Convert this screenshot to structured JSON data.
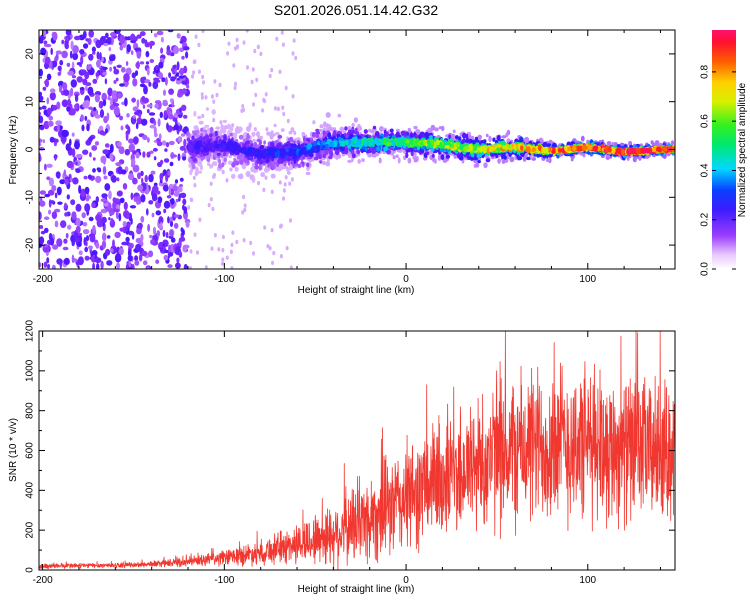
{
  "title": "S201.2026.051.14.42.G32",
  "chart_data": [
    {
      "type": "heatmap",
      "title": "S201.2026.051.14.42.G32",
      "xlabel": "Height of straight line (km)",
      "ylabel": "Frequency (Hz)",
      "xlim": [
        -202,
        148
      ],
      "ylim": [
        -25,
        25
      ],
      "xticks": [
        -200,
        -100,
        0,
        100
      ],
      "yticks": [
        20,
        10,
        0,
        -10,
        -20
      ],
      "colorbar": {
        "label": "Normalized spectral amplitude",
        "range": [
          0.0,
          0.97
        ],
        "ticks": [
          0.0,
          0.2,
          0.4,
          0.6,
          0.8
        ],
        "colormap": "rainbow (violet-blue-cyan-green-yellow-red-magenta)"
      },
      "ridge": {
        "description": "Dominant spectral ridge near 0 Hz beginning near -120 km, amplitude rising with height",
        "x_km": [
          -120,
          -100,
          -80,
          -60,
          -40,
          -20,
          0,
          20,
          40,
          60,
          80,
          100,
          120,
          140,
          148
        ],
        "freq_hz": [
          0.5,
          0.8,
          -1.0,
          -0.5,
          1.5,
          1.5,
          1.5,
          1.0,
          0.0,
          0.5,
          -0.3,
          0.5,
          -0.5,
          0.0,
          0.0
        ],
        "amplitude": [
          0.2,
          0.22,
          0.25,
          0.28,
          0.35,
          0.45,
          0.5,
          0.6,
          0.65,
          0.72,
          0.78,
          0.85,
          0.9,
          0.93,
          0.95
        ],
        "spread_hz": [
          6,
          5,
          4.5,
          4.5,
          4,
          3.5,
          3,
          3,
          3,
          2.5,
          2,
          1.5,
          1.5,
          1.2,
          1.2
        ]
      },
      "noise_region": {
        "x_km": [
          -202,
          -120
        ],
        "freq_hz": [
          -25,
          25
        ],
        "amplitude": [
          0.05,
          0.2
        ]
      }
    },
    {
      "type": "line",
      "xlabel": "Height of straight line (km)",
      "ylabel": "SNR (10 * v/v)",
      "xlim": [
        -202,
        148
      ],
      "ylim": [
        0,
        1200
      ],
      "xticks": [
        -200,
        -100,
        0,
        100
      ],
      "yticks": [
        0,
        200,
        400,
        600,
        800,
        1000,
        1200
      ],
      "series": [
        {
          "name": "SNR",
          "color": "#f03830",
          "envelope_x_km": [
            -200,
            -150,
            -120,
            -100,
            -80,
            -60,
            -40,
            -20,
            0,
            20,
            40,
            60,
            80,
            100,
            120,
            140,
            148
          ],
          "envelope_mean": [
            20,
            25,
            40,
            60,
            90,
            130,
            180,
            260,
            360,
            460,
            540,
            600,
            640,
            630,
            610,
            600,
            620
          ],
          "envelope_amp": [
            15,
            15,
            25,
            45,
            70,
            110,
            180,
            250,
            300,
            340,
            380,
            420,
            450,
            430,
            400,
            380,
            380
          ],
          "peak_value": 1200
        }
      ]
    }
  ],
  "colors": {
    "snr_line": "#f03830",
    "axis": "#000000",
    "background": "#ffffff"
  }
}
